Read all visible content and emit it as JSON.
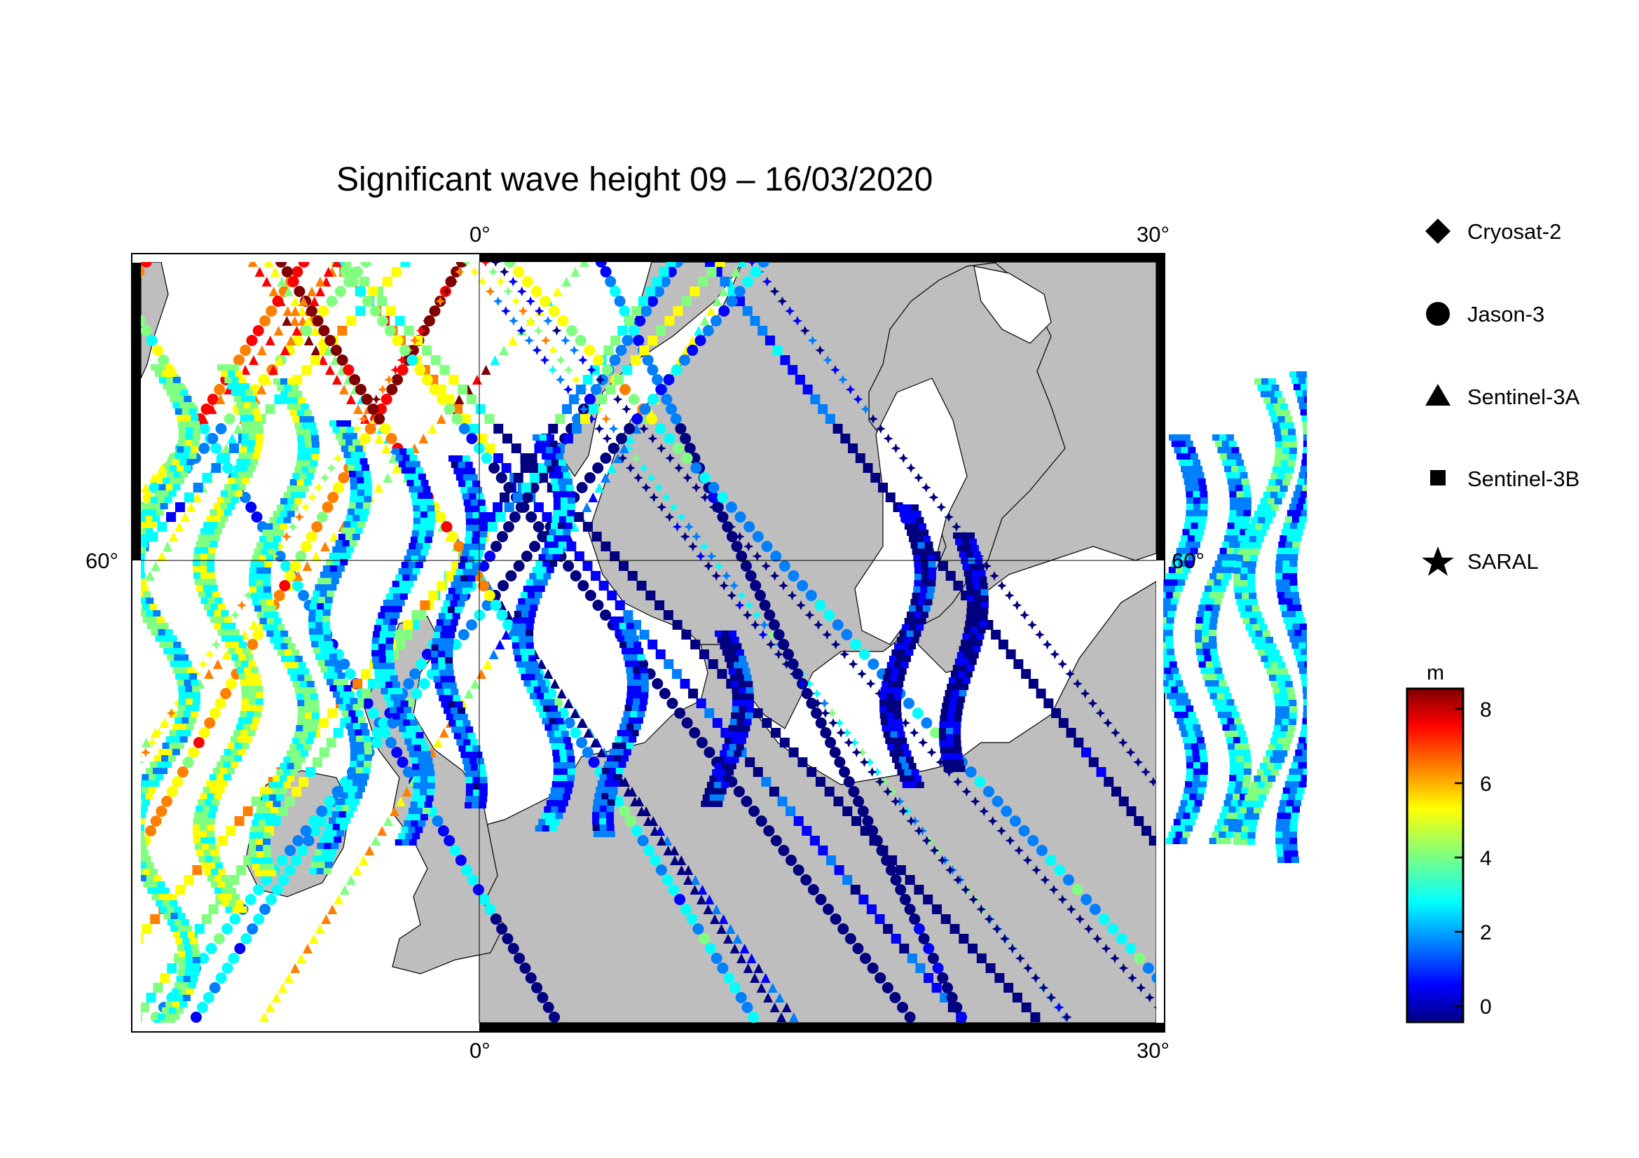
{
  "title": "Significant wave height 09 – 16/03/2020",
  "map": {
    "lon_ticks": [
      "0°",
      "30°"
    ],
    "lat_ticks": [
      "60°",
      "60°"
    ],
    "land_color": "#bebebe",
    "sea_color": "#ffffff"
  },
  "legend": {
    "items": [
      {
        "label": "Cryosat-2",
        "marker": "diamond"
      },
      {
        "label": "Jason-3",
        "marker": "circle"
      },
      {
        "label": "Sentinel-3A",
        "marker": "triangle"
      },
      {
        "label": "Sentinel-3B",
        "marker": "square"
      },
      {
        "label": "SARAL",
        "marker": "star"
      }
    ]
  },
  "colorbar": {
    "unit": "m",
    "ticks": [
      "8",
      "6",
      "4",
      "2",
      "0"
    ],
    "colors": [
      "#800000",
      "#ff0000",
      "#ff8000",
      "#ffff00",
      "#80ff80",
      "#00ffff",
      "#0080ff",
      "#0000ff",
      "#000080"
    ]
  }
}
